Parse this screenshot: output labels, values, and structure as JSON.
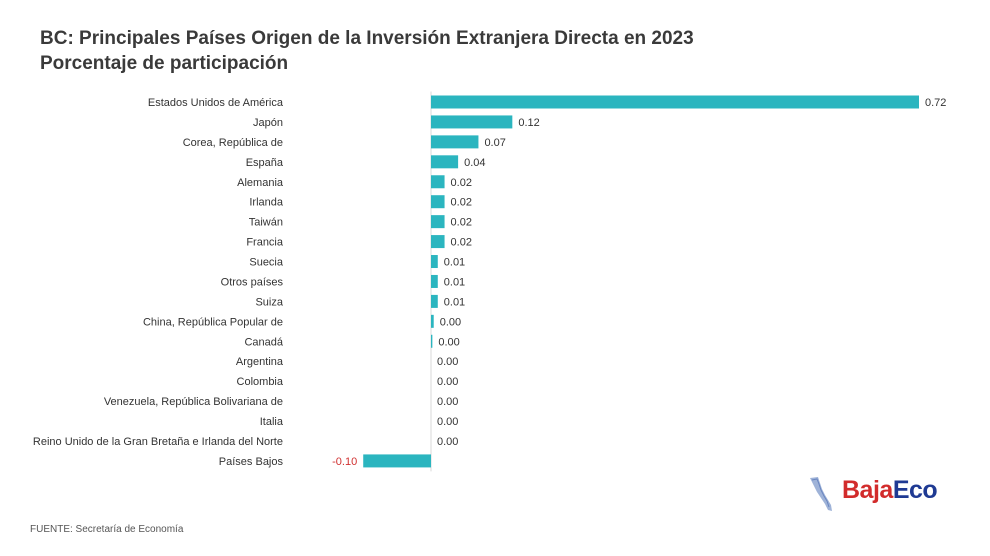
{
  "header": {
    "title": "BC: Principales Países Origen de la Inversión Extranjera Directa en 2023",
    "subtitle": "Porcentaje de participación"
  },
  "footer": {
    "source": "FUENTE: Secretaría de Economía"
  },
  "logo": {
    "part1": "Baja",
    "part2": "Eco",
    "colors": {
      "part1": "#d22b2b",
      "part2": "#1f3a93",
      "mark": "#9fb3d8"
    }
  },
  "colors": {
    "bar": "#2bb5bf",
    "negative_label": "#d03030"
  },
  "chart_data": {
    "type": "bar",
    "orientation": "horizontal",
    "title": "BC: Principales Países Origen de la Inversión Extranjera Directa en 2023",
    "subtitle": "Porcentaje de participación",
    "categories": [
      "Estados Unidos de América",
      "Japón",
      "Corea, República de",
      "España",
      "Alemania",
      "Irlanda",
      "Taiwán",
      "Francia",
      "Suecia",
      "Otros países",
      "Suiza",
      "China, República Popular de",
      "Canadá",
      "Argentina",
      "Colombia",
      "Venezuela, República Bolivariana de",
      "Italia",
      "Reino Unido de la Gran Bretaña e Irlanda del Norte",
      "Países Bajos"
    ],
    "values": [
      0.72,
      0.12,
      0.07,
      0.04,
      0.02,
      0.02,
      0.02,
      0.02,
      0.01,
      0.01,
      0.01,
      0.004,
      0.002,
      0.0,
      0.0,
      0.0,
      0.0,
      0.0,
      -0.1
    ],
    "value_labels": [
      "0.72",
      "0.12",
      "0.07",
      "0.04",
      "0.02",
      "0.02",
      "0.02",
      "0.02",
      "0.01",
      "0.01",
      "0.01",
      "0.00",
      "0.00",
      "0.00",
      "0.00",
      "0.00",
      "0.00",
      "0.00",
      "-0.10"
    ],
    "xlim": [
      -0.1,
      0.72
    ],
    "grid": false,
    "legend": "none"
  }
}
